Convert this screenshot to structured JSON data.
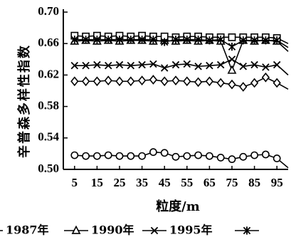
{
  "chart_data": {
    "type": "line",
    "ylabel": "辛普森多样性指数",
    "xlabel": "粒度/m",
    "ylim": [
      0.5,
      0.7
    ],
    "yticks": [
      "0.50",
      "0.54",
      "0.58",
      "0.62",
      "0.66",
      "0.70"
    ],
    "xticks": [
      "5",
      "15",
      "25",
      "35",
      "45",
      "55",
      "65",
      "75",
      "85",
      "95"
    ],
    "x": [
      5,
      10,
      15,
      20,
      25,
      30,
      35,
      40,
      45,
      50,
      55,
      60,
      65,
      70,
      75,
      80,
      85,
      90,
      95,
      100
    ],
    "series": [
      {
        "name": "1987年",
        "marker": "circle",
        "values": [
          0.518,
          0.517,
          0.517,
          0.518,
          0.517,
          0.517,
          0.517,
          0.522,
          0.521,
          0.516,
          0.517,
          0.518,
          0.517,
          0.515,
          0.513,
          0.516,
          0.518,
          0.519,
          0.514,
          0.502
        ]
      },
      {
        "name": "1990年",
        "marker": "triangle",
        "values": [
          0.663,
          0.664,
          0.663,
          0.664,
          0.663,
          0.664,
          0.664,
          0.663,
          0.664,
          0.663,
          0.664,
          0.663,
          0.664,
          0.663,
          0.626,
          0.664,
          0.663,
          0.664,
          0.663,
          0.65
        ]
      },
      {
        "name": "1995年",
        "marker": "x",
        "values": [
          0.632,
          0.632,
          0.633,
          0.632,
          0.633,
          0.632,
          0.633,
          0.634,
          0.629,
          0.633,
          0.634,
          0.631,
          0.632,
          0.633,
          0.64,
          0.631,
          0.633,
          0.63,
          0.633,
          0.62
        ]
      },
      {
        "name": "",
        "marker": "diamond",
        "values": [
          0.612,
          0.612,
          0.612,
          0.613,
          0.612,
          0.612,
          0.613,
          0.614,
          0.612,
          0.613,
          0.612,
          0.611,
          0.612,
          0.61,
          0.608,
          0.605,
          0.61,
          0.617,
          0.61,
          0.602
        ]
      },
      {
        "name": "",
        "marker": "square",
        "values": [
          0.67,
          0.669,
          0.67,
          0.669,
          0.67,
          0.669,
          0.67,
          0.669,
          0.669,
          0.668,
          0.669,
          0.669,
          0.668,
          0.668,
          0.668,
          0.668,
          0.668,
          0.668,
          0.667,
          0.66
        ]
      },
      {
        "name": "",
        "marker": "star",
        "values": [
          0.665,
          0.665,
          0.665,
          0.665,
          0.665,
          0.665,
          0.665,
          0.665,
          0.662,
          0.665,
          0.665,
          0.665,
          0.664,
          0.665,
          0.656,
          0.664,
          0.664,
          0.664,
          0.664,
          0.655
        ]
      }
    ],
    "legend": {
      "placement": "bottom",
      "entries": [
        {
          "label": "1987年",
          "marker": "circle"
        },
        {
          "label": "1990年",
          "marker": "triangle"
        },
        {
          "label": "1995年",
          "marker": "x"
        },
        {
          "label": "",
          "marker": "star"
        }
      ]
    }
  }
}
